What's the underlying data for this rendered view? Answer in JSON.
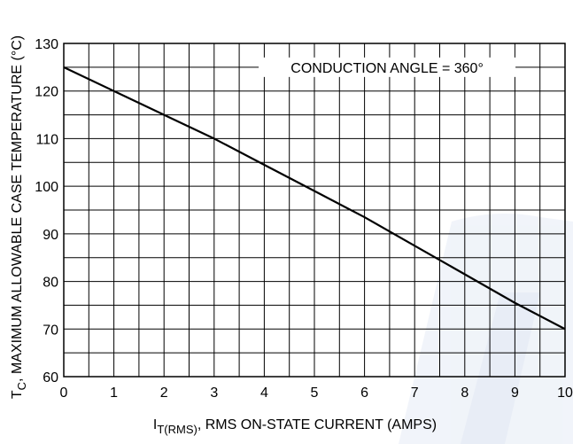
{
  "chart_data": {
    "type": "line",
    "xlabel": {
      "prefix": "I",
      "subscript": "T(RMS)",
      "suffix": ", RMS ON-STATE CURRENT (AMPS)"
    },
    "ylabel": {
      "prefix": "T",
      "subscript": "C",
      "suffix": ", MAXIMUM ALLOWABLE CASE TEMPERATURE (°C)"
    },
    "xlim": [
      0,
      10
    ],
    "ylim": [
      60,
      130
    ],
    "x_ticks": [
      "0",
      "1",
      "2",
      "3",
      "4",
      "5",
      "6",
      "7",
      "8",
      "9",
      "10"
    ],
    "y_ticks": [
      "60",
      "70",
      "80",
      "90",
      "100",
      "110",
      "120",
      "130"
    ],
    "grid": true,
    "annotation": "CONDUCTION ANGLE = 360°",
    "series": [
      {
        "color": "#000000",
        "points": [
          {
            "x": 0,
            "y": 125
          },
          {
            "x": 1,
            "y": 120
          },
          {
            "x": 2,
            "y": 115
          },
          {
            "x": 3,
            "y": 110
          },
          {
            "x": 4,
            "y": 104.5
          },
          {
            "x": 5,
            "y": 99
          },
          {
            "x": 6,
            "y": 93.5
          },
          {
            "x": 7,
            "y": 87.5
          },
          {
            "x": 8,
            "y": 81.5
          },
          {
            "x": 9,
            "y": 75.5
          },
          {
            "x": 10,
            "y": 70
          }
        ]
      }
    ]
  }
}
